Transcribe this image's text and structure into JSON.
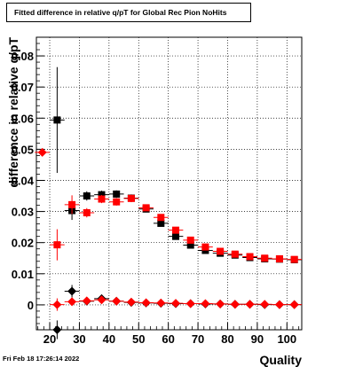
{
  "chart_data": {
    "type": "scatter",
    "title": "Fitted difference in relative q/pT for Global Rec Pion NoHits",
    "xlabel": "Quality",
    "ylabel": "difference in relative q/pT",
    "xlim": [
      15.5,
      105
    ],
    "ylim": [
      -0.008,
      0.086
    ],
    "x_ticks": [
      20,
      30,
      40,
      50,
      60,
      70,
      80,
      90,
      100
    ],
    "y_ticks": [
      0,
      0.01,
      0.02,
      0.03,
      0.04,
      0.05,
      0.06,
      0.07,
      0.08
    ],
    "y_tick_labels": [
      "0",
      "0.01",
      "0.02",
      "0.03",
      "0.04",
      "0.05",
      "0.06",
      "0.07",
      "0.08"
    ],
    "grid": true,
    "series": [
      {
        "marker": "square",
        "color": "#000000",
        "x": [
          22.5,
          27.5,
          32.5,
          37.5,
          42.5,
          47.5,
          52.5,
          57.5,
          62.5,
          67.5,
          72.5,
          77.5,
          82.5,
          87.5,
          92.5,
          97.5,
          102.5
        ],
        "y": [
          0.0594,
          0.0303,
          0.035,
          0.0354,
          0.0356,
          0.0343,
          0.0308,
          0.0262,
          0.022,
          0.0192,
          0.0175,
          0.0166,
          0.016,
          0.0152,
          0.0148,
          0.0147,
          0.0145
        ],
        "err": [
          0.017,
          0.003,
          0.0015,
          0.0013,
          0.0012,
          0.0012,
          0.001,
          0.001,
          0.0008,
          0.0006,
          0.0006,
          0.0005,
          0.0005,
          0.0004,
          0.0004,
          0.0004,
          0.0004
        ]
      },
      {
        "marker": "square",
        "color": "#ff0000",
        "x": [
          22.5,
          27.5,
          32.5,
          37.5,
          42.5,
          47.5,
          52.5,
          57.5,
          62.5,
          67.5,
          72.5,
          77.5,
          82.5,
          87.5,
          92.5,
          97.5,
          102.5
        ],
        "y": [
          0.0193,
          0.0322,
          0.0296,
          0.034,
          0.0331,
          0.0342,
          0.0312,
          0.0281,
          0.024,
          0.0208,
          0.0186,
          0.0172,
          0.0163,
          0.0155,
          0.015,
          0.0148,
          0.0146
        ],
        "err": [
          0.005,
          0.003,
          0.0015,
          0.0013,
          0.0012,
          0.0012,
          0.001,
          0.001,
          0.0008,
          0.0006,
          0.0006,
          0.0005,
          0.0005,
          0.0004,
          0.0004,
          0.0004,
          0.0004
        ]
      },
      {
        "marker": "diamond",
        "color": "#000000",
        "x": [
          22.5,
          27.5,
          32.5,
          37.5,
          42.5,
          47.5,
          52.5,
          57.5,
          62.5,
          67.5,
          72.5,
          77.5,
          82.5,
          87.5,
          92.5,
          97.5,
          102.5
        ],
        "y": [
          -0.008,
          0.0044,
          0.0012,
          0.002,
          0.0012,
          0.0008,
          0.0006,
          0.0005,
          0.0004,
          0.0004,
          0.0003,
          0.0003,
          0.0002,
          0.0002,
          0.0001,
          0.0001,
          0.0001
        ],
        "err": [
          0.003,
          0.002,
          0.0008,
          0.0006,
          0.0005,
          0.0004,
          0.0004,
          0.0003,
          0.0003,
          0.0003,
          0.0002,
          0.0002,
          0.0002,
          0.0002,
          0.0002,
          0.0002,
          0.0002
        ]
      },
      {
        "marker": "diamond",
        "color": "#ff0000",
        "x": [
          17.5,
          22.5,
          27.5,
          32.5,
          37.5,
          42.5,
          47.5,
          52.5,
          57.5,
          62.5,
          67.5,
          72.5,
          77.5,
          82.5,
          87.5,
          92.5,
          97.5,
          102.5
        ],
        "y": [
          0.049,
          0.0001,
          0.001,
          0.0013,
          0.0016,
          0.0012,
          0.0009,
          0.0007,
          0.0006,
          0.0005,
          0.0004,
          0.0004,
          0.0003,
          0.0002,
          0.0002,
          0.0002,
          0.0001,
          0.0001
        ],
        "err": [
          0.0005,
          0.002,
          0.001,
          0.0007,
          0.0006,
          0.0005,
          0.0004,
          0.0004,
          0.0003,
          0.0003,
          0.0003,
          0.0002,
          0.0002,
          0.0002,
          0.0002,
          0.0002,
          0.0002,
          0.0002
        ]
      }
    ]
  },
  "footer": {
    "timestamp": "Fri Feb 18 17:26:14 2022"
  }
}
